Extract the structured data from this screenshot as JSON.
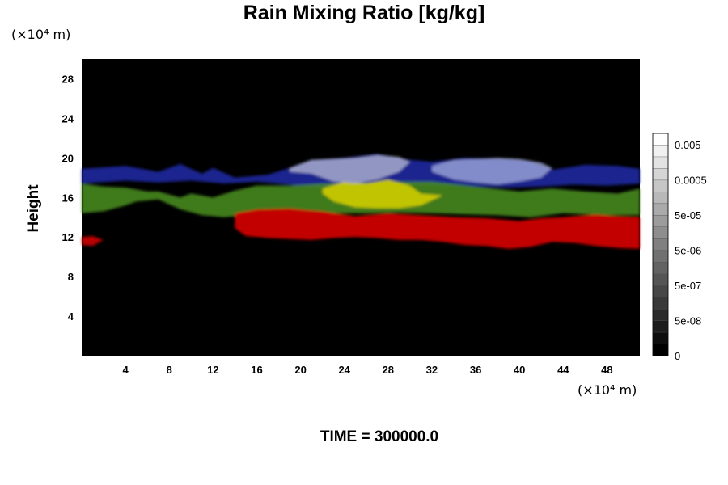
{
  "chart_data": {
    "type": "heatmap",
    "title": "Rain Mixing Ratio [kg/kg]",
    "ylabel": "Height",
    "x_unit": "(×10⁴ m)",
    "y_unit": "(×10⁴ m)",
    "xlim": [
      0,
      51
    ],
    "ylim": [
      0,
      30
    ],
    "x_ticks": [
      4,
      8,
      12,
      16,
      20,
      24,
      28,
      32,
      36,
      40,
      44,
      48
    ],
    "y_ticks": [
      4,
      8,
      12,
      16,
      20,
      24,
      28
    ],
    "colorbar": {
      "labels": [
        "0.005",
        "0.0005",
        "5e-05",
        "5e-06",
        "5e-07",
        "5e-08",
        "0"
      ]
    },
    "time_label": "TIME = 300000.0",
    "layers": [
      {
        "color": "#1e2aa8",
        "opacity": 0.85,
        "top": [
          [
            0,
            18.9
          ],
          [
            4,
            19.2
          ],
          [
            7,
            18.6
          ],
          [
            9,
            19.4
          ],
          [
            11,
            18.4
          ],
          [
            12,
            19.0
          ],
          [
            14,
            18.0
          ],
          [
            17,
            18.3
          ],
          [
            19,
            19.0
          ],
          [
            21,
            19.8
          ],
          [
            24,
            20.0
          ],
          [
            27,
            20.4
          ],
          [
            30,
            19.8
          ],
          [
            32,
            19.6
          ],
          [
            35,
            20.0
          ],
          [
            38,
            19.9
          ],
          [
            41,
            19.6
          ],
          [
            43,
            18.8
          ],
          [
            46,
            19.3
          ],
          [
            49,
            19.2
          ],
          [
            51,
            18.9
          ]
        ],
        "bottom": [
          [
            0,
            17.4
          ],
          [
            4,
            17.7
          ],
          [
            7,
            17.5
          ],
          [
            10,
            17.7
          ],
          [
            13,
            17.4
          ],
          [
            16,
            17.6
          ],
          [
            19,
            17.3
          ],
          [
            21,
            17.0
          ],
          [
            24,
            17.0
          ],
          [
            27,
            17.0
          ],
          [
            30,
            17.3
          ],
          [
            33,
            17.2
          ],
          [
            36,
            17.1
          ],
          [
            39,
            17.0
          ],
          [
            42,
            17.1
          ],
          [
            45,
            17.3
          ],
          [
            48,
            17.2
          ],
          [
            51,
            17.4
          ]
        ]
      },
      {
        "color": "#4a8f20",
        "opacity": 0.85,
        "top": [
          [
            0,
            17.4
          ],
          [
            2,
            17.1
          ],
          [
            4,
            17.0
          ],
          [
            6,
            16.6
          ],
          [
            7,
            16.6
          ],
          [
            9,
            16.0
          ],
          [
            10,
            16.4
          ],
          [
            12,
            16.0
          ],
          [
            14,
            16.7
          ],
          [
            16,
            17.2
          ],
          [
            19,
            17.2
          ],
          [
            22,
            17.4
          ],
          [
            25,
            17.4
          ],
          [
            28,
            17.6
          ],
          [
            32,
            17.6
          ],
          [
            36,
            17.1
          ],
          [
            40,
            16.6
          ],
          [
            43,
            16.9
          ],
          [
            46,
            16.6
          ],
          [
            49,
            16.4
          ],
          [
            51,
            16.9
          ]
        ],
        "bottom": [
          [
            0,
            14.4
          ],
          [
            2,
            14.6
          ],
          [
            4,
            15.2
          ],
          [
            5,
            15.6
          ],
          [
            7,
            15.8
          ],
          [
            9,
            14.8
          ],
          [
            11,
            14.2
          ],
          [
            13,
            14.0
          ],
          [
            15,
            14.2
          ],
          [
            17,
            14.8
          ],
          [
            20,
            14.7
          ],
          [
            23,
            14.4
          ],
          [
            26,
            14.4
          ],
          [
            29,
            14.5
          ],
          [
            32,
            14.4
          ],
          [
            35,
            14.3
          ],
          [
            38,
            14.2
          ],
          [
            41,
            14.0
          ],
          [
            44,
            14.4
          ],
          [
            48,
            14.2
          ],
          [
            51,
            14.2
          ]
        ]
      },
      {
        "color": "#c8c800",
        "opacity": 0.95,
        "top": [
          [
            22,
            16.9
          ],
          [
            24,
            17.6
          ],
          [
            26,
            17.4
          ],
          [
            28,
            17.8
          ],
          [
            30,
            17.2
          ],
          [
            31,
            16.4
          ],
          [
            33,
            16.2
          ]
        ],
        "bottom": [
          [
            33,
            16.2
          ],
          [
            31,
            15.2
          ],
          [
            29,
            14.9
          ],
          [
            27,
            14.9
          ],
          [
            25,
            15.0
          ],
          [
            23,
            15.6
          ],
          [
            22,
            16.4
          ]
        ]
      },
      {
        "color": "#a8aacc",
        "opacity": 0.85,
        "top": [
          [
            19,
            19.0
          ],
          [
            21,
            19.8
          ],
          [
            23,
            19.9
          ],
          [
            25,
            20.0
          ],
          [
            27,
            20.3
          ],
          [
            29,
            20.1
          ],
          [
            30,
            19.6
          ]
        ],
        "bottom": [
          [
            30,
            19.6
          ],
          [
            29,
            18.6
          ],
          [
            27,
            17.8
          ],
          [
            25,
            17.4
          ],
          [
            23,
            17.6
          ],
          [
            21,
            18.4
          ],
          [
            19,
            18.6
          ]
        ]
      },
      {
        "color": "#9ea6d8",
        "opacity": 0.8,
        "top": [
          [
            32,
            19.2
          ],
          [
            34,
            19.8
          ],
          [
            36,
            19.9
          ],
          [
            38,
            20.0
          ],
          [
            40,
            19.9
          ],
          [
            42,
            19.5
          ],
          [
            43,
            19.0
          ]
        ],
        "bottom": [
          [
            43,
            19.0
          ],
          [
            42,
            18.0
          ],
          [
            40,
            17.6
          ],
          [
            38,
            17.3
          ],
          [
            36,
            17.5
          ],
          [
            34,
            17.8
          ],
          [
            32,
            18.6
          ]
        ]
      },
      {
        "color": "#cc0000",
        "opacity": 0.95,
        "top": [
          [
            14,
            14.4
          ],
          [
            16,
            14.8
          ],
          [
            19,
            14.9
          ],
          [
            22,
            14.6
          ],
          [
            25,
            14.1
          ],
          [
            28,
            14.4
          ],
          [
            31,
            14.2
          ],
          [
            34,
            14.0
          ],
          [
            37,
            13.9
          ],
          [
            40,
            13.6
          ],
          [
            42,
            13.9
          ],
          [
            44,
            14.0
          ],
          [
            47,
            14.3
          ],
          [
            49,
            14.1
          ],
          [
            51,
            14.0
          ]
        ],
        "bottom": [
          [
            51,
            10.8
          ],
          [
            49,
            10.9
          ],
          [
            47,
            11.1
          ],
          [
            45,
            11.4
          ],
          [
            43,
            11.5
          ],
          [
            41,
            11.0
          ],
          [
            39,
            10.8
          ],
          [
            37,
            11.1
          ],
          [
            35,
            11.2
          ],
          [
            33,
            11.5
          ],
          [
            31,
            11.7
          ],
          [
            29,
            11.7
          ],
          [
            27,
            11.9
          ],
          [
            25,
            12.0
          ],
          [
            23,
            11.9
          ],
          [
            21,
            11.7
          ],
          [
            19,
            11.8
          ],
          [
            17,
            11.9
          ],
          [
            15,
            12.1
          ],
          [
            14,
            12.9
          ]
        ]
      },
      {
        "color": "#cc0000",
        "opacity": 0.9,
        "top": [
          [
            0,
            12.0
          ],
          [
            1,
            12.1
          ],
          [
            2,
            11.7
          ]
        ],
        "bottom": [
          [
            2,
            11.7
          ],
          [
            1,
            11.1
          ],
          [
            0,
            11.2
          ]
        ]
      }
    ]
  }
}
